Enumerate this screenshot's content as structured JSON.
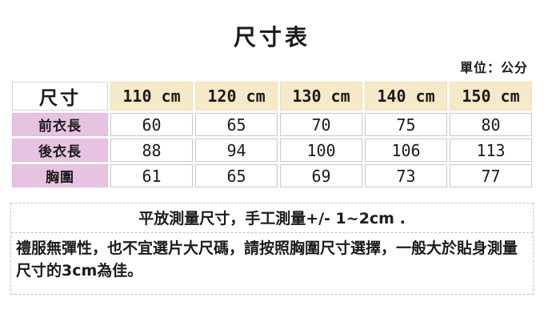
{
  "page": {
    "title": "尺寸表",
    "unit_label": "單位：公分"
  },
  "table": {
    "corner_header": "尺寸",
    "column_headers": [
      "110 cm",
      "120 cm",
      "130 cm",
      "140 cm",
      "150 cm"
    ],
    "rows": [
      {
        "label": "前衣長",
        "values": [
          "60",
          "65",
          "70",
          "75",
          "80"
        ]
      },
      {
        "label": "後衣長",
        "values": [
          "88",
          "94",
          "100",
          "106",
          "113"
        ]
      },
      {
        "label": "胸圍",
        "values": [
          "61",
          "65",
          "69",
          "73",
          "77"
        ]
      }
    ]
  },
  "notes": {
    "measurement_note": "平放測量尺寸，手工測量+/- 1~2cm .",
    "sizing_note": "禮服無彈性，也不宜選片大尺碼，請按照胸圍尺寸選擇，一般大於貼身測量尺寸的3cm為佳。"
  },
  "colors": {
    "header_bg": "#f7e8c7",
    "label_bg": "#e7c3e1",
    "grid_border": "#c9c9c9",
    "dashed_border": "#c3c3c3",
    "text": "#1b1b1b"
  }
}
